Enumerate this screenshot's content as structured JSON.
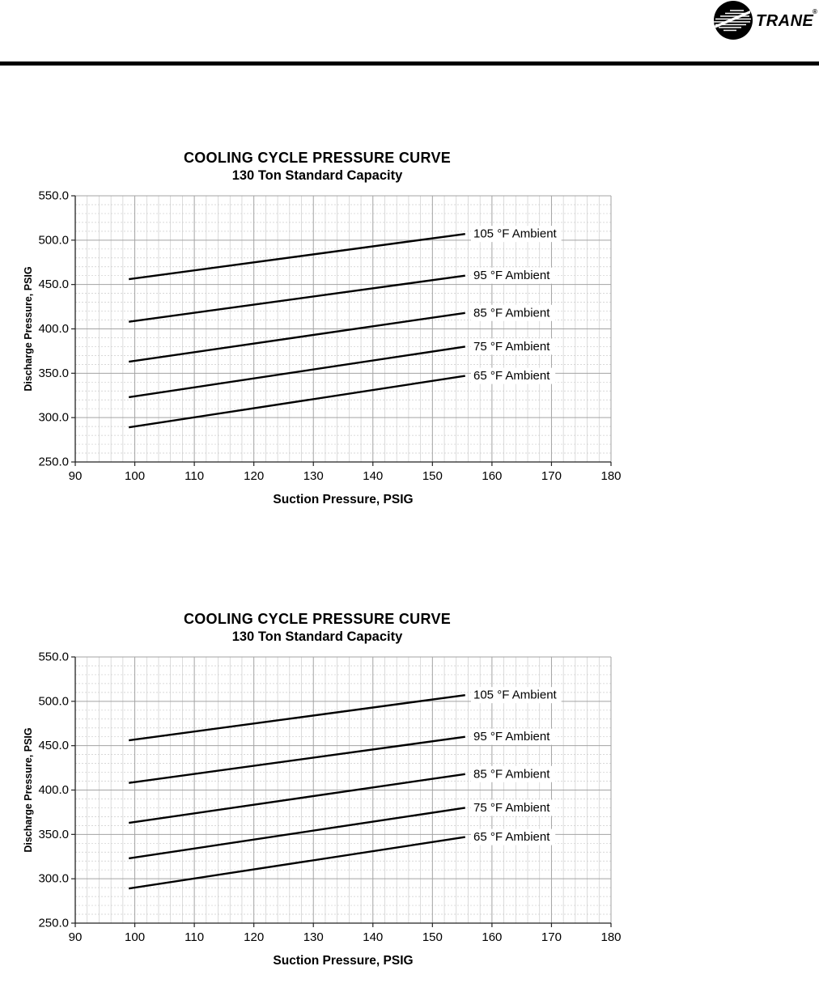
{
  "header": {
    "brand": "TRANE",
    "registered": "®",
    "rule_color": "#000000"
  },
  "chart_data": [
    {
      "type": "line",
      "title": "COOLING CYCLE PRESSURE CURVE",
      "subtitle": "130 Ton Standard Capacity",
      "xlabel": "Suction Pressure, PSIG",
      "ylabel": "Discharge Pressure, PSIG",
      "xlim": [
        90,
        180
      ],
      "ylim": [
        250,
        550
      ],
      "x_major_step": 10,
      "x_minor_step": 2,
      "y_major_step": 50,
      "y_minor_step": 10,
      "x_tick_labels": [
        "90",
        "100",
        "110",
        "120",
        "130",
        "140",
        "150",
        "160",
        "170",
        "180"
      ],
      "y_tick_labels": [
        "550.0",
        "500.0",
        "450.0",
        "400.0",
        "350.0",
        "300.0",
        "250.0"
      ],
      "grid": true,
      "legend_position": "inline-right-of-lines",
      "line_color": "#000000",
      "major_grid_color": "#a3a3a3",
      "minor_grid_color": "#cccccc",
      "series": [
        {
          "name": "105 °F Ambient",
          "x": [
            99,
            155.5
          ],
          "values": [
            456,
            507
          ]
        },
        {
          "name": "95 °F Ambient",
          "x": [
            99,
            155.5
          ],
          "values": [
            408,
            460
          ]
        },
        {
          "name": "85 °F Ambient",
          "x": [
            99,
            155.5
          ],
          "values": [
            363,
            418
          ]
        },
        {
          "name": "75 °F Ambient",
          "x": [
            99,
            155.5
          ],
          "values": [
            323,
            380
          ]
        },
        {
          "name": "65 °F Ambient",
          "x": [
            99,
            155.5
          ],
          "values": [
            289,
            347
          ]
        }
      ]
    },
    {
      "type": "line",
      "title": "COOLING CYCLE PRESSURE CURVE",
      "subtitle": "130 Ton Standard Capacity",
      "xlabel": "Suction Pressure, PSIG",
      "ylabel": "Discharge Pressure, PSIG",
      "xlim": [
        90,
        180
      ],
      "ylim": [
        250,
        550
      ],
      "x_major_step": 10,
      "x_minor_step": 2,
      "y_major_step": 50,
      "y_minor_step": 10,
      "x_tick_labels": [
        "90",
        "100",
        "110",
        "120",
        "130",
        "140",
        "150",
        "160",
        "170",
        "180"
      ],
      "y_tick_labels": [
        "550.0",
        "500.0",
        "450.0",
        "400.0",
        "350.0",
        "300.0",
        "250.0"
      ],
      "grid": true,
      "legend_position": "inline-right-of-lines",
      "line_color": "#000000",
      "major_grid_color": "#a3a3a3",
      "minor_grid_color": "#cccccc",
      "series": [
        {
          "name": "105 °F Ambient",
          "x": [
            99,
            155.5
          ],
          "values": [
            456,
            507
          ]
        },
        {
          "name": "95 °F Ambient",
          "x": [
            99,
            155.5
          ],
          "values": [
            408,
            460
          ]
        },
        {
          "name": "85 °F Ambient",
          "x": [
            99,
            155.5
          ],
          "values": [
            363,
            418
          ]
        },
        {
          "name": "75 °F Ambient",
          "x": [
            99,
            155.5
          ],
          "values": [
            323,
            380
          ]
        },
        {
          "name": "65 °F Ambient",
          "x": [
            99,
            155.5
          ],
          "values": [
            289,
            347
          ]
        }
      ]
    }
  ]
}
